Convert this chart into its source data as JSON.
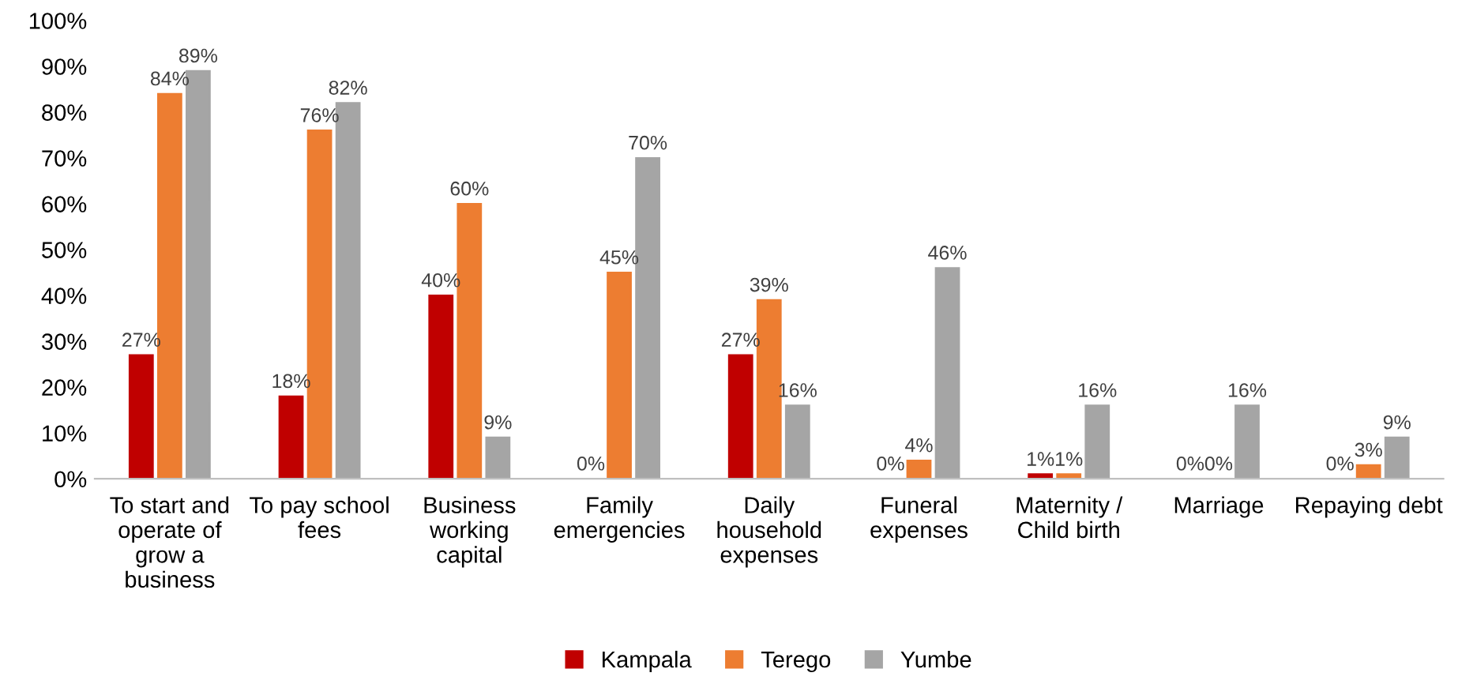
{
  "chart_data": {
    "type": "bar",
    "categories": [
      "To start and\noperate of\ngrow a\nbusiness",
      "To pay school\nfees",
      "Business\nworking\ncapital",
      "Family\nemergencies",
      "Daily\nhousehold\nexpenses",
      "Funeral\nexpenses",
      "Maternity /\nChild birth",
      "Marriage",
      "Repaying debt"
    ],
    "series": [
      {
        "name": "Kampala",
        "color": "#c00000",
        "values": [
          27,
          18,
          40,
          0,
          27,
          0,
          1,
          0,
          0
        ],
        "value_labels": [
          "27%",
          "18%",
          "40%",
          "0%",
          "27%",
          "0%",
          "1%",
          "0%",
          "0%"
        ]
      },
      {
        "name": "Terego",
        "color": "#ed7d31",
        "values": [
          84,
          76,
          60,
          45,
          39,
          4,
          1,
          0,
          3
        ],
        "value_labels": [
          "84%",
          "76%",
          "60%",
          "45%",
          "39%",
          "4%",
          "1%",
          "0%",
          "3%"
        ]
      },
      {
        "name": "Yumbe",
        "color": "#a5a5a5",
        "values": [
          89,
          82,
          9,
          70,
          16,
          46,
          16,
          16,
          9
        ],
        "value_labels": [
          "89%",
          "82%",
          "9%",
          "70%",
          "16%",
          "46%",
          "16%",
          "16%",
          "9%"
        ]
      }
    ],
    "ylim": [
      0,
      100
    ],
    "yticks": [
      {
        "value": 0,
        "label": "0%"
      },
      {
        "value": 10,
        "label": "10%"
      },
      {
        "value": 20,
        "label": "20%"
      },
      {
        "value": 30,
        "label": "30%"
      },
      {
        "value": 40,
        "label": "40%"
      },
      {
        "value": 50,
        "label": "50%"
      },
      {
        "value": 60,
        "label": "60%"
      },
      {
        "value": 70,
        "label": "70%"
      },
      {
        "value": 80,
        "label": "80%"
      },
      {
        "value": 90,
        "label": "90%"
      },
      {
        "value": 100,
        "label": "100%"
      }
    ],
    "grid": false,
    "legend": "bottom"
  }
}
